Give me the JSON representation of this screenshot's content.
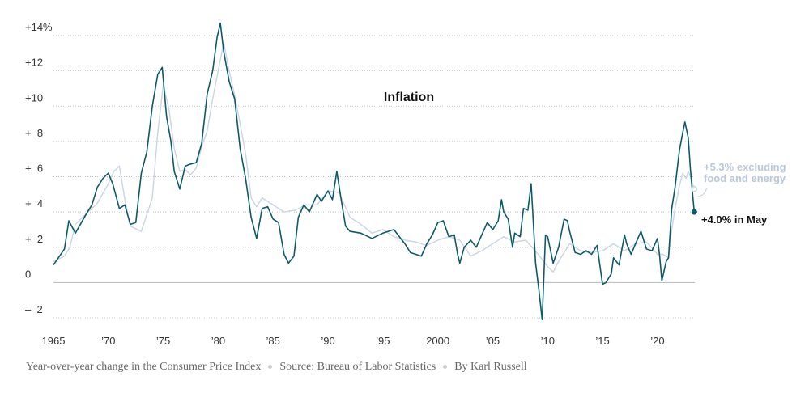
{
  "chart_data": {
    "type": "line",
    "title": "Inflation",
    "ylim": [
      -2.5,
      14.5
    ],
    "xlim": [
      1965,
      2023.4
    ],
    "grid": true,
    "y_ticks": [
      {
        "value": 14,
        "label": "+14%"
      },
      {
        "value": 12,
        "label": "+12"
      },
      {
        "value": 10,
        "label": "+10"
      },
      {
        "value": 8,
        "label": "+  8"
      },
      {
        "value": 6,
        "label": "+  6"
      },
      {
        "value": 4,
        "label": "+  4"
      },
      {
        "value": 2,
        "label": "+  2"
      },
      {
        "value": 0,
        "label": "0"
      },
      {
        "value": -2,
        "label": "–  2"
      }
    ],
    "x_ticks": [
      {
        "value": 1965,
        "label": "1965"
      },
      {
        "value": 1970,
        "label": "’70"
      },
      {
        "value": 1975,
        "label": "’75"
      },
      {
        "value": 1980,
        "label": "’80"
      },
      {
        "value": 1985,
        "label": "’85"
      },
      {
        "value": 1990,
        "label": "’90"
      },
      {
        "value": 1995,
        "label": "’95"
      },
      {
        "value": 2000,
        "label": "2000"
      },
      {
        "value": 2005,
        "label": "’05"
      },
      {
        "value": 2010,
        "label": "’10"
      },
      {
        "value": 2015,
        "label": "’15"
      },
      {
        "value": 2020,
        "label": "’20"
      }
    ],
    "series": [
      {
        "name": "+5.3% excluding food and energy",
        "color": "#c9d5e3",
        "x": [
          1965.0,
          1966.0,
          1966.5,
          1967.0,
          1968.0,
          1969.0,
          1970.0,
          1970.5,
          1971.0,
          1971.5,
          1972.0,
          1973.0,
          1974.0,
          1974.5,
          1975.0,
          1975.5,
          1976.0,
          1976.5,
          1977.0,
          1977.5,
          1978.0,
          1978.5,
          1979.0,
          1979.5,
          1980.0,
          1980.5,
          1981.0,
          1981.5,
          1982.0,
          1982.5,
          1983.0,
          1983.5,
          1984.0,
          1985.0,
          1986.0,
          1987.0,
          1988.0,
          1989.0,
          1990.0,
          1991.0,
          1992.0,
          1993.0,
          1994.0,
          1995.0,
          1996.0,
          1997.0,
          1998.0,
          1999.0,
          2000.0,
          2001.0,
          2002.0,
          2003.0,
          2004.0,
          2005.0,
          2006.0,
          2007.0,
          2008.0,
          2009.0,
          2010.0,
          2010.5,
          2011.0,
          2012.0,
          2013.0,
          2014.0,
          2015.0,
          2016.0,
          2017.0,
          2018.0,
          2019.0,
          2020.0,
          2020.5,
          2021.0,
          2021.3,
          2021.6,
          2022.0,
          2022.3,
          2022.6,
          2022.8,
          2023.0,
          2023.2,
          2023.35
        ],
        "y": [
          1.2,
          1.5,
          2.0,
          3.3,
          3.9,
          4.5,
          5.6,
          6.3,
          6.6,
          4.7,
          3.2,
          2.9,
          4.8,
          8.5,
          11.2,
          9.9,
          7.6,
          6.3,
          6.4,
          6.1,
          6.5,
          7.7,
          8.6,
          10.4,
          12.0,
          13.6,
          12.0,
          10.6,
          9.0,
          7.3,
          4.8,
          4.3,
          4.8,
          4.4,
          4.0,
          4.1,
          4.4,
          4.4,
          5.2,
          5.1,
          3.7,
          3.3,
          2.8,
          3.0,
          2.6,
          2.4,
          2.3,
          2.1,
          2.4,
          2.6,
          2.4,
          1.5,
          1.8,
          2.2,
          2.6,
          2.3,
          2.4,
          1.7,
          0.9,
          0.6,
          1.2,
          2.2,
          1.8,
          1.7,
          1.8,
          2.2,
          1.8,
          2.2,
          2.3,
          1.6,
          1.6,
          1.4,
          3.0,
          4.2,
          5.5,
          6.2,
          5.9,
          6.3,
          6.0,
          5.6,
          5.3
        ]
      },
      {
        "name": "+4.0% in May",
        "color": "#0d5a6b",
        "x": [
          1965.0,
          1966.0,
          1966.4,
          1967.0,
          1968.0,
          1968.5,
          1969.0,
          1969.5,
          1970.0,
          1970.4,
          1971.0,
          1971.5,
          1972.0,
          1972.5,
          1973.0,
          1973.5,
          1974.0,
          1974.5,
          1974.9,
          1975.3,
          1975.7,
          1976.0,
          1976.5,
          1977.0,
          1977.4,
          1978.0,
          1978.5,
          1979.0,
          1979.5,
          1979.9,
          1980.2,
          1980.5,
          1981.0,
          1981.5,
          1982.0,
          1982.5,
          1983.0,
          1983.5,
          1984.0,
          1984.5,
          1985.0,
          1985.5,
          1986.0,
          1986.4,
          1986.9,
          1987.3,
          1987.8,
          1988.3,
          1989.0,
          1989.4,
          1990.0,
          1990.4,
          1990.8,
          1991.2,
          1991.6,
          1992.0,
          1993.0,
          1994.0,
          1995.0,
          1996.0,
          1996.5,
          1997.0,
          1997.5,
          1998.0,
          1998.5,
          1999.0,
          1999.5,
          2000.0,
          2000.5,
          2001.0,
          2001.5,
          2001.8,
          2002.0,
          2002.4,
          2003.0,
          2003.5,
          2004.0,
          2004.5,
          2005.0,
          2005.5,
          2005.8,
          2006.0,
          2006.4,
          2006.8,
          2007.0,
          2007.5,
          2007.8,
          2008.2,
          2008.5,
          2008.9,
          2009.2,
          2009.5,
          2009.8,
          2010.0,
          2010.5,
          2011.0,
          2011.5,
          2011.8,
          2012.0,
          2012.5,
          2013.0,
          2013.5,
          2014.0,
          2014.5,
          2015.0,
          2015.3,
          2015.8,
          2016.0,
          2016.5,
          2017.0,
          2017.2,
          2017.6,
          2018.0,
          2018.5,
          2019.0,
          2019.5,
          2020.0,
          2020.2,
          2020.4,
          2020.8,
          2021.0,
          2021.3,
          2021.6,
          2022.0,
          2022.3,
          2022.5,
          2022.8,
          2023.0,
          2023.2,
          2023.35
        ],
        "y": [
          1.0,
          1.9,
          3.5,
          2.8,
          3.9,
          4.4,
          5.4,
          5.9,
          6.2,
          5.6,
          4.2,
          4.4,
          3.3,
          3.4,
          6.2,
          7.4,
          10.0,
          11.8,
          12.2,
          9.4,
          8.0,
          6.3,
          5.3,
          6.6,
          6.7,
          6.8,
          7.9,
          10.7,
          12.0,
          13.9,
          14.7,
          13.1,
          11.4,
          10.4,
          7.6,
          5.9,
          3.7,
          2.5,
          4.2,
          4.3,
          3.6,
          3.4,
          1.6,
          1.1,
          1.5,
          3.7,
          4.4,
          4.0,
          5.0,
          4.6,
          5.2,
          4.7,
          6.3,
          4.7,
          3.2,
          2.9,
          2.8,
          2.5,
          2.8,
          3.0,
          2.6,
          2.2,
          1.7,
          1.6,
          1.5,
          2.2,
          2.7,
          3.4,
          3.5,
          2.6,
          2.7,
          1.6,
          1.1,
          2.0,
          2.4,
          2.0,
          2.7,
          3.4,
          3.0,
          3.5,
          4.7,
          4.0,
          3.6,
          2.0,
          2.8,
          2.6,
          4.2,
          4.1,
          5.6,
          1.1,
          -0.4,
          -2.1,
          2.7,
          2.6,
          1.1,
          2.0,
          3.6,
          3.5,
          2.9,
          1.7,
          1.6,
          1.8,
          1.6,
          2.1,
          -0.1,
          0.0,
          0.5,
          1.4,
          1.0,
          2.7,
          2.2,
          1.6,
          2.2,
          2.9,
          1.9,
          1.8,
          2.5,
          1.5,
          0.1,
          1.2,
          1.4,
          4.2,
          5.4,
          7.5,
          8.5,
          9.1,
          8.2,
          6.4,
          5.0,
          4.0
        ]
      }
    ],
    "annotations": {
      "core_line1": "+5.3% excluding",
      "core_line2": "food and energy",
      "headline": "+4.0% in May"
    }
  },
  "footer": {
    "caption": "Year-over-year change in the Consumer Price Index",
    "source": "Source: Bureau of Labor Statistics",
    "byline": "By Karl Russell"
  }
}
